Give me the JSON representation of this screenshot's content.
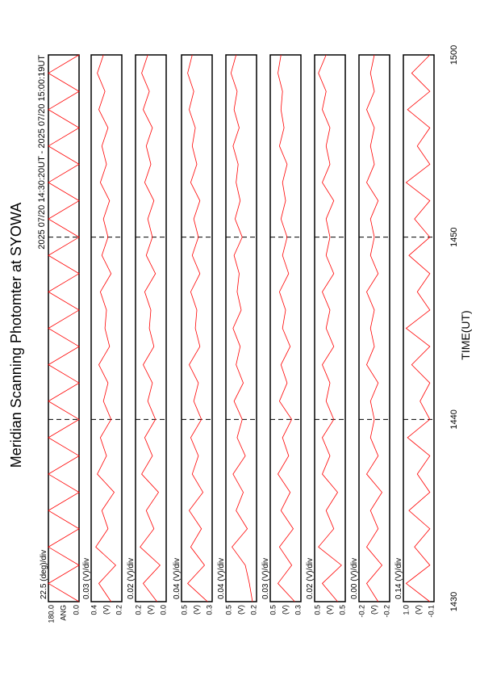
{
  "chart_data": {
    "type": "line",
    "title": "Meridian Scanning Photomter at SYOWA",
    "subtitle": "2025 07/20 14:30:20UT - 2025 07/20 15:00:19UT",
    "x_label": "TIME(UT)",
    "xlim": [
      0,
      30
    ],
    "xticks": [
      {
        "value": 0,
        "label": "1430"
      },
      {
        "value": 10,
        "label": "1440"
      },
      {
        "value": 20,
        "label": "1450"
      },
      {
        "value": 30,
        "label": "1500"
      }
    ],
    "grid": true,
    "x": [
      0,
      1,
      2,
      3,
      4,
      5,
      6,
      7,
      8,
      9,
      10,
      11,
      12,
      13,
      14,
      15,
      16,
      17,
      18,
      19,
      20,
      21,
      22,
      23,
      24,
      25,
      26,
      27,
      28,
      29,
      30
    ],
    "series": [
      {
        "name": "22.5 (deg)/div",
        "color": "#ff0000",
        "ylabel": "ANG",
        "ylim": [
          0,
          180
        ],
        "yticks": [
          {
            "value": 0,
            "label": "0.0"
          },
          {
            "value": 180,
            "label": "180.0"
          }
        ],
        "values": [
          0,
          180,
          0,
          180,
          0,
          180,
          0,
          180,
          0,
          180,
          0,
          180,
          0,
          180,
          0,
          180,
          0,
          180,
          0,
          180,
          0,
          180,
          0,
          180,
          0,
          180,
          0,
          180,
          0,
          180,
          0
        ]
      },
      {
        "name": "0.03 (V)/div",
        "color": "#ff0000",
        "ylabel": "(V)",
        "ylim": [
          0.2,
          0.4
        ],
        "yticks": [
          0.2,
          0.4
        ],
        "values": [
          0.27,
          0.35,
          0.24,
          0.37,
          0.29,
          0.33,
          0.25,
          0.36,
          0.3,
          0.34,
          0.27,
          0.32,
          0.29,
          0.35,
          0.28,
          0.31,
          0.3,
          0.34,
          0.27,
          0.33,
          0.29,
          0.32,
          0.28,
          0.34,
          0.3,
          0.33,
          0.29,
          0.35,
          0.31,
          0.36,
          0.32
        ]
      },
      {
        "name": "0.02 (V)/div",
        "color": "#ff0000",
        "ylabel": "(V)",
        "ylim": [
          0.0,
          0.2
        ],
        "yticks": [
          {
            "value": 0,
            "label": "0.0"
          },
          0.2
        ],
        "values": [
          0.06,
          0.15,
          0.04,
          0.17,
          0.08,
          0.13,
          0.05,
          0.16,
          0.09,
          0.14,
          0.07,
          0.12,
          0.09,
          0.15,
          0.08,
          0.11,
          0.1,
          0.14,
          0.07,
          0.13,
          0.09,
          0.12,
          0.08,
          0.14,
          0.1,
          0.13,
          0.09,
          0.15,
          0.11,
          0.16,
          0.12
        ]
      },
      {
        "name": "0.04 (V)/div",
        "color": "#ff0000",
        "ylabel": "(V)",
        "ylim": [
          0.3,
          0.5
        ],
        "yticks": [
          0.3,
          0.5
        ],
        "values": [
          0.33,
          0.46,
          0.35,
          0.44,
          0.37,
          0.45,
          0.36,
          0.43,
          0.39,
          0.44,
          0.37,
          0.42,
          0.39,
          0.45,
          0.38,
          0.41,
          0.4,
          0.44,
          0.38,
          0.43,
          0.39,
          0.42,
          0.38,
          0.44,
          0.4,
          0.43,
          0.41,
          0.45,
          0.42,
          0.46,
          0.43
        ]
      },
      {
        "name": "0.04 (V)/div",
        "color": "#ff0000",
        "ylabel": "(V)",
        "ylim": [
          0.2,
          0.5
        ],
        "yticks": [
          0.2,
          0.5
        ],
        "values": [
          0.24,
          0.27,
          0.31,
          0.44,
          0.29,
          0.4,
          0.33,
          0.43,
          0.31,
          0.39,
          0.34,
          0.42,
          0.33,
          0.4,
          0.36,
          0.43,
          0.35,
          0.39,
          0.37,
          0.42,
          0.34,
          0.41,
          0.36,
          0.4,
          0.38,
          0.43,
          0.37,
          0.42,
          0.39,
          0.45,
          0.4
        ]
      },
      {
        "name": "0.03 (V)/div",
        "color": "#ff0000",
        "ylabel": "(V)",
        "ylim": [
          0.3,
          0.5
        ],
        "yticks": [
          0.3,
          0.5
        ],
        "values": [
          0.34,
          0.45,
          0.36,
          0.44,
          0.35,
          0.43,
          0.37,
          0.45,
          0.38,
          0.42,
          0.36,
          0.44,
          0.39,
          0.43,
          0.37,
          0.42,
          0.4,
          0.44,
          0.38,
          0.42,
          0.39,
          0.43,
          0.4,
          0.42,
          0.39,
          0.44,
          0.41,
          0.43,
          0.42,
          0.45,
          0.43
        ]
      },
      {
        "name": "0.02 (V)/div",
        "color": "#ff0000",
        "ylabel": "(V)",
        "ylim": [
          0.46,
          0.54
        ],
        "yticks": [
          {
            "value": 0.46,
            "label": "0.5"
          },
          {
            "value": 0.54,
            "label": "0.5"
          }
        ],
        "values": [
          0.48,
          0.52,
          0.47,
          0.53,
          0.49,
          0.51,
          0.48,
          0.52,
          0.5,
          0.52,
          0.49,
          0.51,
          0.5,
          0.52,
          0.49,
          0.51,
          0.5,
          0.52,
          0.49,
          0.51,
          0.5,
          0.51,
          0.49,
          0.52,
          0.5,
          0.51,
          0.5,
          0.52,
          0.51,
          0.53,
          0.51
        ]
      },
      {
        "name": "0.00 (V)/div",
        "color": "#ff0000",
        "ylabel": "(V)",
        "ylim": [
          -0.24,
          -0.16
        ],
        "yticks": [
          {
            "value": -0.24,
            "label": "-0.2"
          },
          {
            "value": -0.16,
            "label": "-0.2"
          }
        ],
        "values": [
          -0.21,
          -0.18,
          -0.22,
          -0.18,
          -0.21,
          -0.19,
          -0.22,
          -0.18,
          -0.21,
          -0.19,
          -0.2,
          -0.19,
          -0.21,
          -0.18,
          -0.2,
          -0.19,
          -0.2,
          -0.18,
          -0.21,
          -0.19,
          -0.2,
          -0.19,
          -0.21,
          -0.18,
          -0.2,
          -0.19,
          -0.2,
          -0.18,
          -0.2,
          -0.19,
          -0.2
        ]
      },
      {
        "name": "0.14 (V)/div",
        "color": "#ff0000",
        "ylabel": "(V)",
        "ylim": [
          -0.1,
          1.0
        ],
        "yticks": [
          -0.1,
          {
            "value": 1.0,
            "label": "1.0"
          }
        ],
        "values": [
          0.05,
          0.9,
          0.05,
          0.6,
          0.05,
          0.8,
          0.05,
          0.5,
          0.05,
          0.85,
          0.05,
          0.4,
          0.05,
          0.7,
          0.05,
          0.9,
          0.05,
          0.5,
          0.05,
          0.8,
          0.05,
          0.6,
          0.05,
          0.9,
          0.05,
          0.5,
          0.05,
          0.85,
          0.05,
          0.7,
          0.05
        ]
      }
    ]
  }
}
